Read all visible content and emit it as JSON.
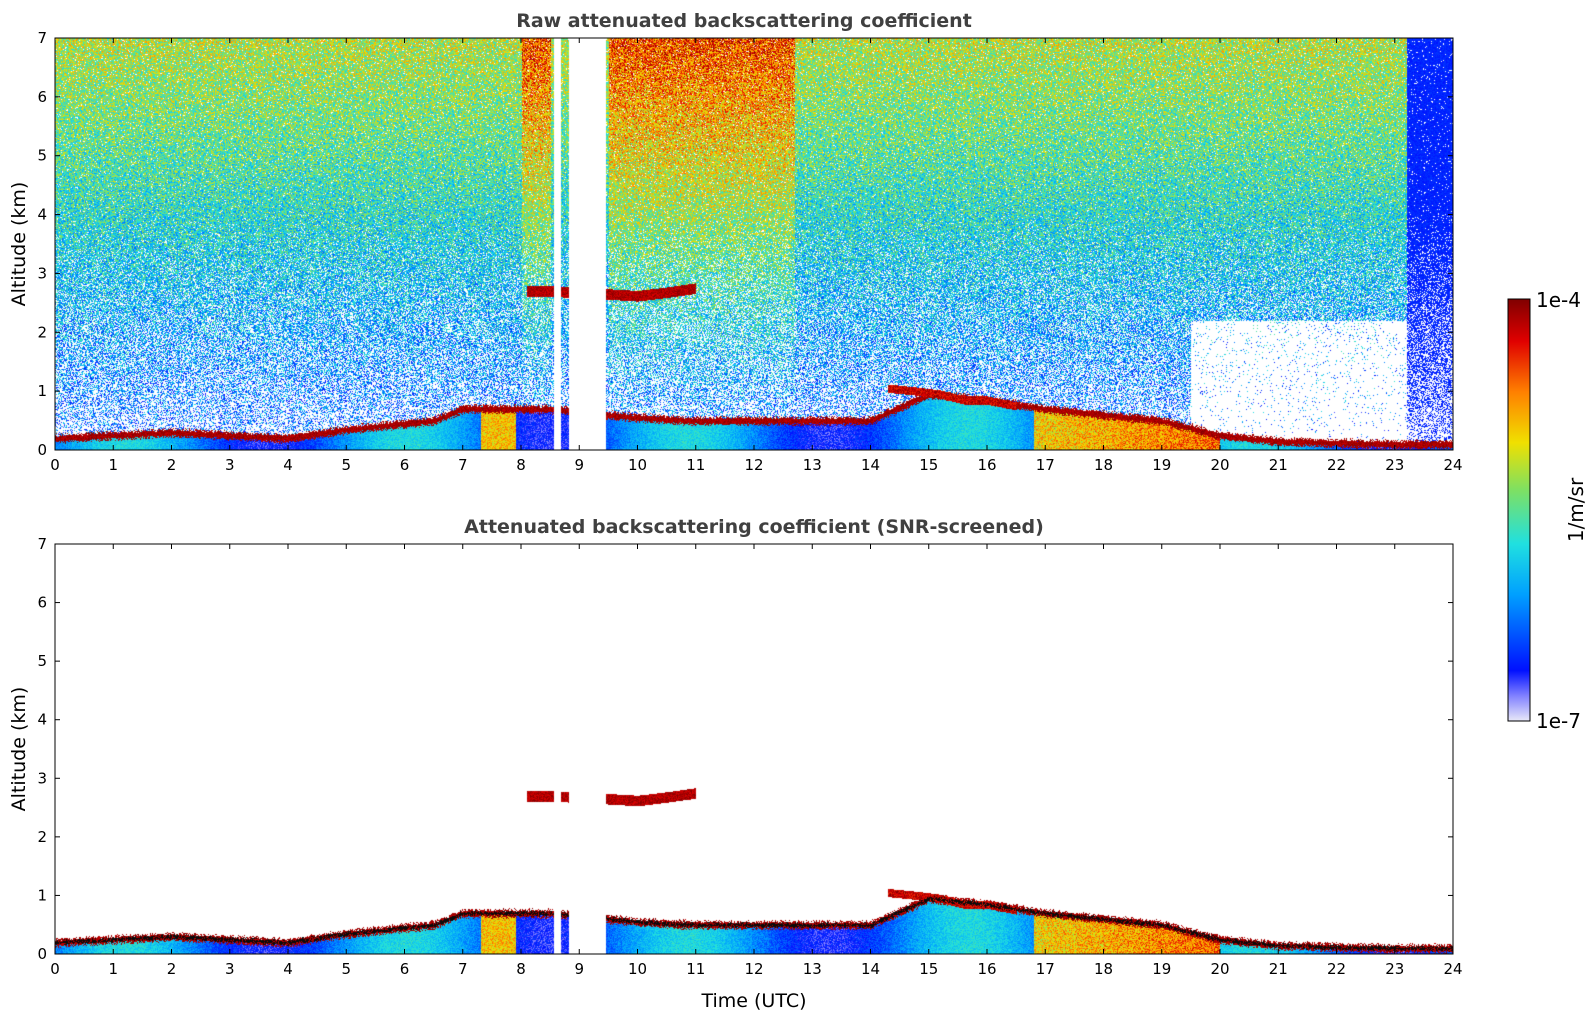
{
  "chart_data": [
    {
      "type": "heatmap",
      "title": "Raw attenuated backscattering coefficient",
      "xlabel": "",
      "ylabel": "Altitude (km)",
      "xlim": [
        0,
        24
      ],
      "ylim": [
        0,
        7
      ],
      "xticks": [
        "0",
        "1",
        "2",
        "3",
        "4",
        "5",
        "6",
        "7",
        "8",
        "9",
        "10",
        "11",
        "12",
        "13",
        "14",
        "15",
        "16",
        "17",
        "18",
        "19",
        "20",
        "21",
        "22",
        "23",
        "24"
      ],
      "yticks": [
        "0",
        "1",
        "2",
        "3",
        "4",
        "5",
        "6",
        "7"
      ],
      "screened": false,
      "data_gaps_hours": [
        [
          8.55,
          8.68
        ],
        [
          8.82,
          9.45
        ]
      ],
      "features": [
        {
          "name": "boundary layer top",
          "time": [
            0,
            2,
            4,
            5,
            6.5,
            7,
            8.5,
            10,
            11,
            12,
            13,
            14,
            15,
            16,
            17,
            18,
            19,
            20,
            21,
            22,
            23,
            24
          ],
          "altitude_km": [
            0.2,
            0.3,
            0.2,
            0.35,
            0.5,
            0.7,
            0.7,
            0.55,
            0.5,
            0.5,
            0.5,
            0.5,
            0.95,
            0.85,
            0.7,
            0.6,
            0.5,
            0.25,
            0.15,
            0.12,
            0.1,
            0.1
          ]
        },
        {
          "name": "elevated layer",
          "time": [
            8.1,
            8.5,
            9.5,
            10,
            10.5,
            11.0
          ],
          "altitude_km": [
            2.7,
            2.7,
            2.65,
            2.62,
            2.68,
            2.75
          ]
        },
        {
          "name": "elevated layer",
          "time": [
            14.3,
            14.8,
            15.2,
            15.6,
            16.0,
            16.5
          ],
          "altitude_km": [
            1.05,
            1.0,
            0.95,
            0.85,
            0.85,
            0.75
          ]
        }
      ]
    },
    {
      "type": "heatmap",
      "title": "Attenuated backscattering coefficient (SNR-screened)",
      "xlabel": "Time (UTC)",
      "ylabel": "Altitude (km)",
      "xlim": [
        0,
        24
      ],
      "ylim": [
        0,
        7
      ],
      "xticks": [
        "0",
        "1",
        "2",
        "3",
        "4",
        "5",
        "6",
        "7",
        "8",
        "9",
        "10",
        "11",
        "12",
        "13",
        "14",
        "15",
        "16",
        "17",
        "18",
        "19",
        "20",
        "21",
        "22",
        "23",
        "24"
      ],
      "yticks": [
        "0",
        "1",
        "2",
        "3",
        "4",
        "5",
        "6",
        "7"
      ],
      "screened": true,
      "data_gaps_hours": [
        [
          8.55,
          8.68
        ],
        [
          8.82,
          9.45
        ]
      ]
    }
  ],
  "colorbar": {
    "label": "1/m/sr",
    "max_label": "1e-4",
    "min_label": "1e-7",
    "scale": "log",
    "range": [
      1e-07,
      0.0001
    ],
    "colormap": [
      "#e8e8f8",
      "#0010ff",
      "#00a0ff",
      "#20e0e0",
      "#80e060",
      "#f0e000",
      "#ff8000",
      "#e00000",
      "#800000"
    ]
  }
}
